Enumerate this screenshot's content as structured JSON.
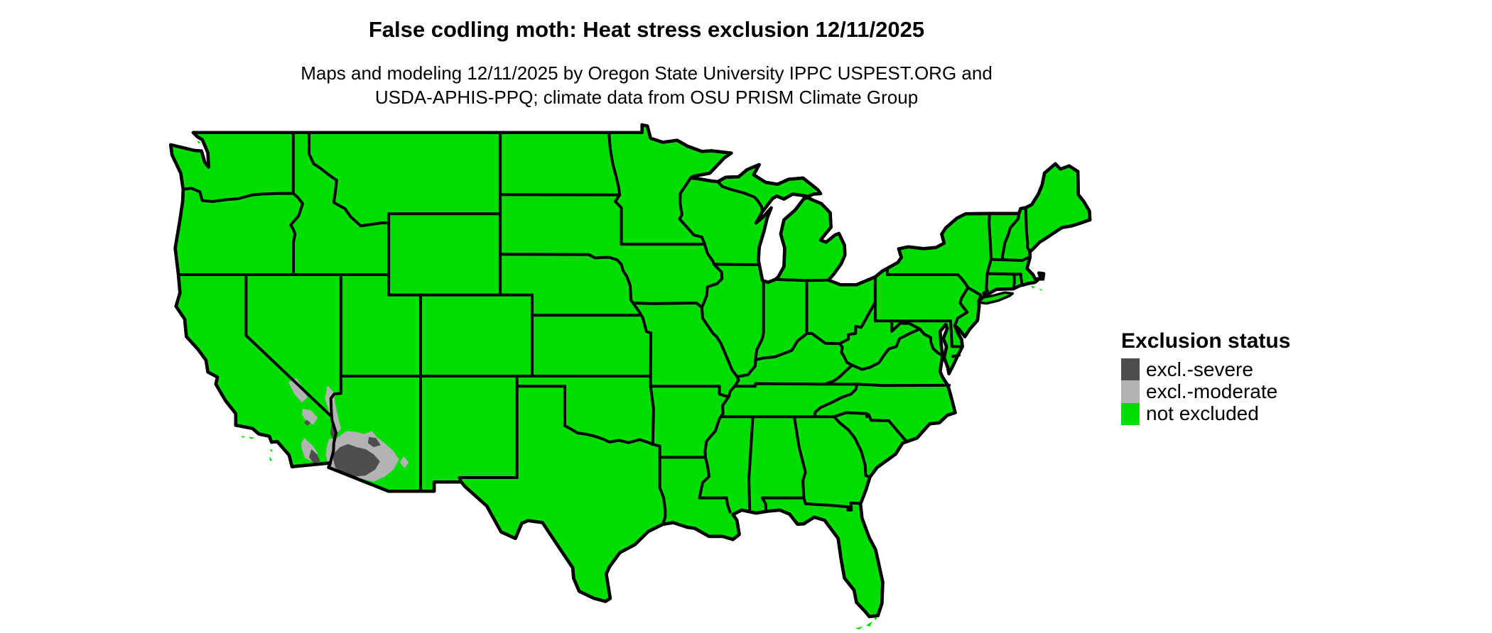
{
  "header": {
    "title": "False codling moth: Heat stress exclusion 12/11/2025",
    "subtitle_line1": "Maps and modeling 12/11/2025 by Oregon State University IPPC USPEST.ORG and",
    "subtitle_line2": "USDA-APHIS-PPQ; climate data from OSU PRISM Climate Group"
  },
  "legend": {
    "title": "Exclusion status",
    "items": [
      {
        "label": "excl.-severe",
        "color": "#4d4d4d"
      },
      {
        "label": "excl.-moderate",
        "color": "#b3b3b3"
      },
      {
        "label": "not excluded",
        "color": "#00dd00"
      }
    ]
  },
  "map": {
    "background": "#ffffff",
    "border_color": "#000000",
    "region_status": {
      "conterminous_us": "not excluded",
      "southwest_desert_core_az_ca": "excl.-severe",
      "southwest_desert_fringe_az_ca": "excl.-moderate"
    }
  }
}
